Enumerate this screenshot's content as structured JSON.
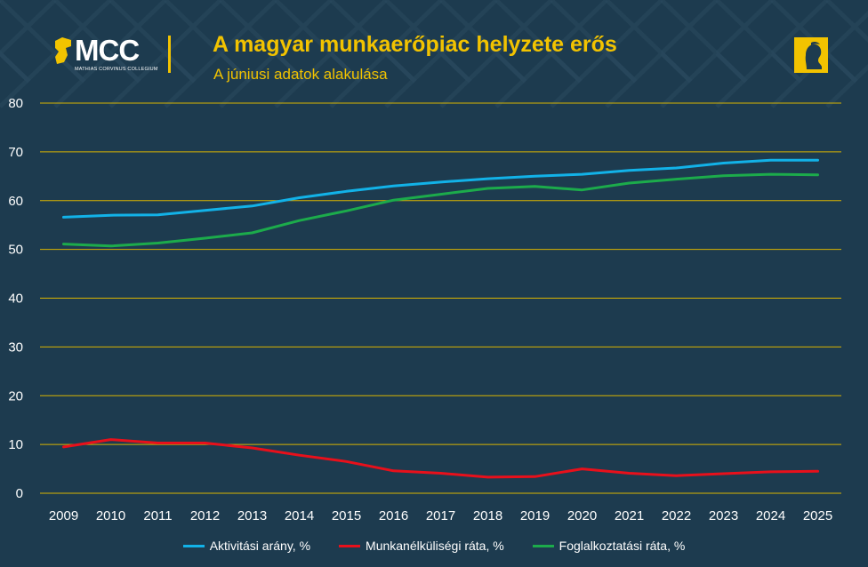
{
  "header": {
    "logo_text": "MCC",
    "logo_subtext": "MATHIAS CORVINUS COLLEGIUM",
    "title": "A magyar munkaerőpiac helyzete erős",
    "subtitle": "A júniusi adatok alakulása"
  },
  "colors": {
    "background": "#1d3b4f",
    "accent": "#f2c300",
    "gridline": "#d9b400",
    "text": "#ffffff",
    "pattern": "#2a4a5e"
  },
  "chart_data": {
    "type": "line",
    "title": "",
    "xlabel": "",
    "ylabel": "",
    "x": [
      "2009",
      "2010",
      "2011",
      "2012",
      "2013",
      "2014",
      "2015",
      "2016",
      "2017",
      "2018",
      "2019",
      "2020",
      "2021",
      "2022",
      "2023",
      "2024",
      "2025"
    ],
    "ylim": [
      0,
      80
    ],
    "yticks": [
      0,
      10,
      20,
      30,
      40,
      50,
      60,
      70,
      80
    ],
    "grid": true,
    "legend_position": "bottom",
    "series": [
      {
        "name": "Aktivitási arány, %",
        "color": "#12b2e8",
        "values": [
          56.6,
          57.0,
          57.1,
          58.0,
          58.9,
          60.6,
          61.9,
          63.0,
          63.8,
          64.5,
          65.0,
          65.4,
          66.2,
          66.7,
          67.7,
          68.3,
          68.3
        ]
      },
      {
        "name": "Munkanélküliségi ráta, %",
        "color": "#e8101b",
        "values": [
          9.5,
          11.0,
          10.3,
          10.3,
          9.3,
          7.8,
          6.5,
          4.6,
          4.1,
          3.3,
          3.4,
          5.0,
          4.1,
          3.6,
          4.0,
          4.4,
          4.5
        ]
      },
      {
        "name": "Foglalkoztatási ráta, %",
        "color": "#1cab4b",
        "values": [
          51.1,
          50.7,
          51.3,
          52.3,
          53.4,
          55.9,
          57.9,
          60.1,
          61.3,
          62.5,
          62.9,
          62.2,
          63.6,
          64.4,
          65.1,
          65.4,
          65.3
        ]
      }
    ]
  }
}
